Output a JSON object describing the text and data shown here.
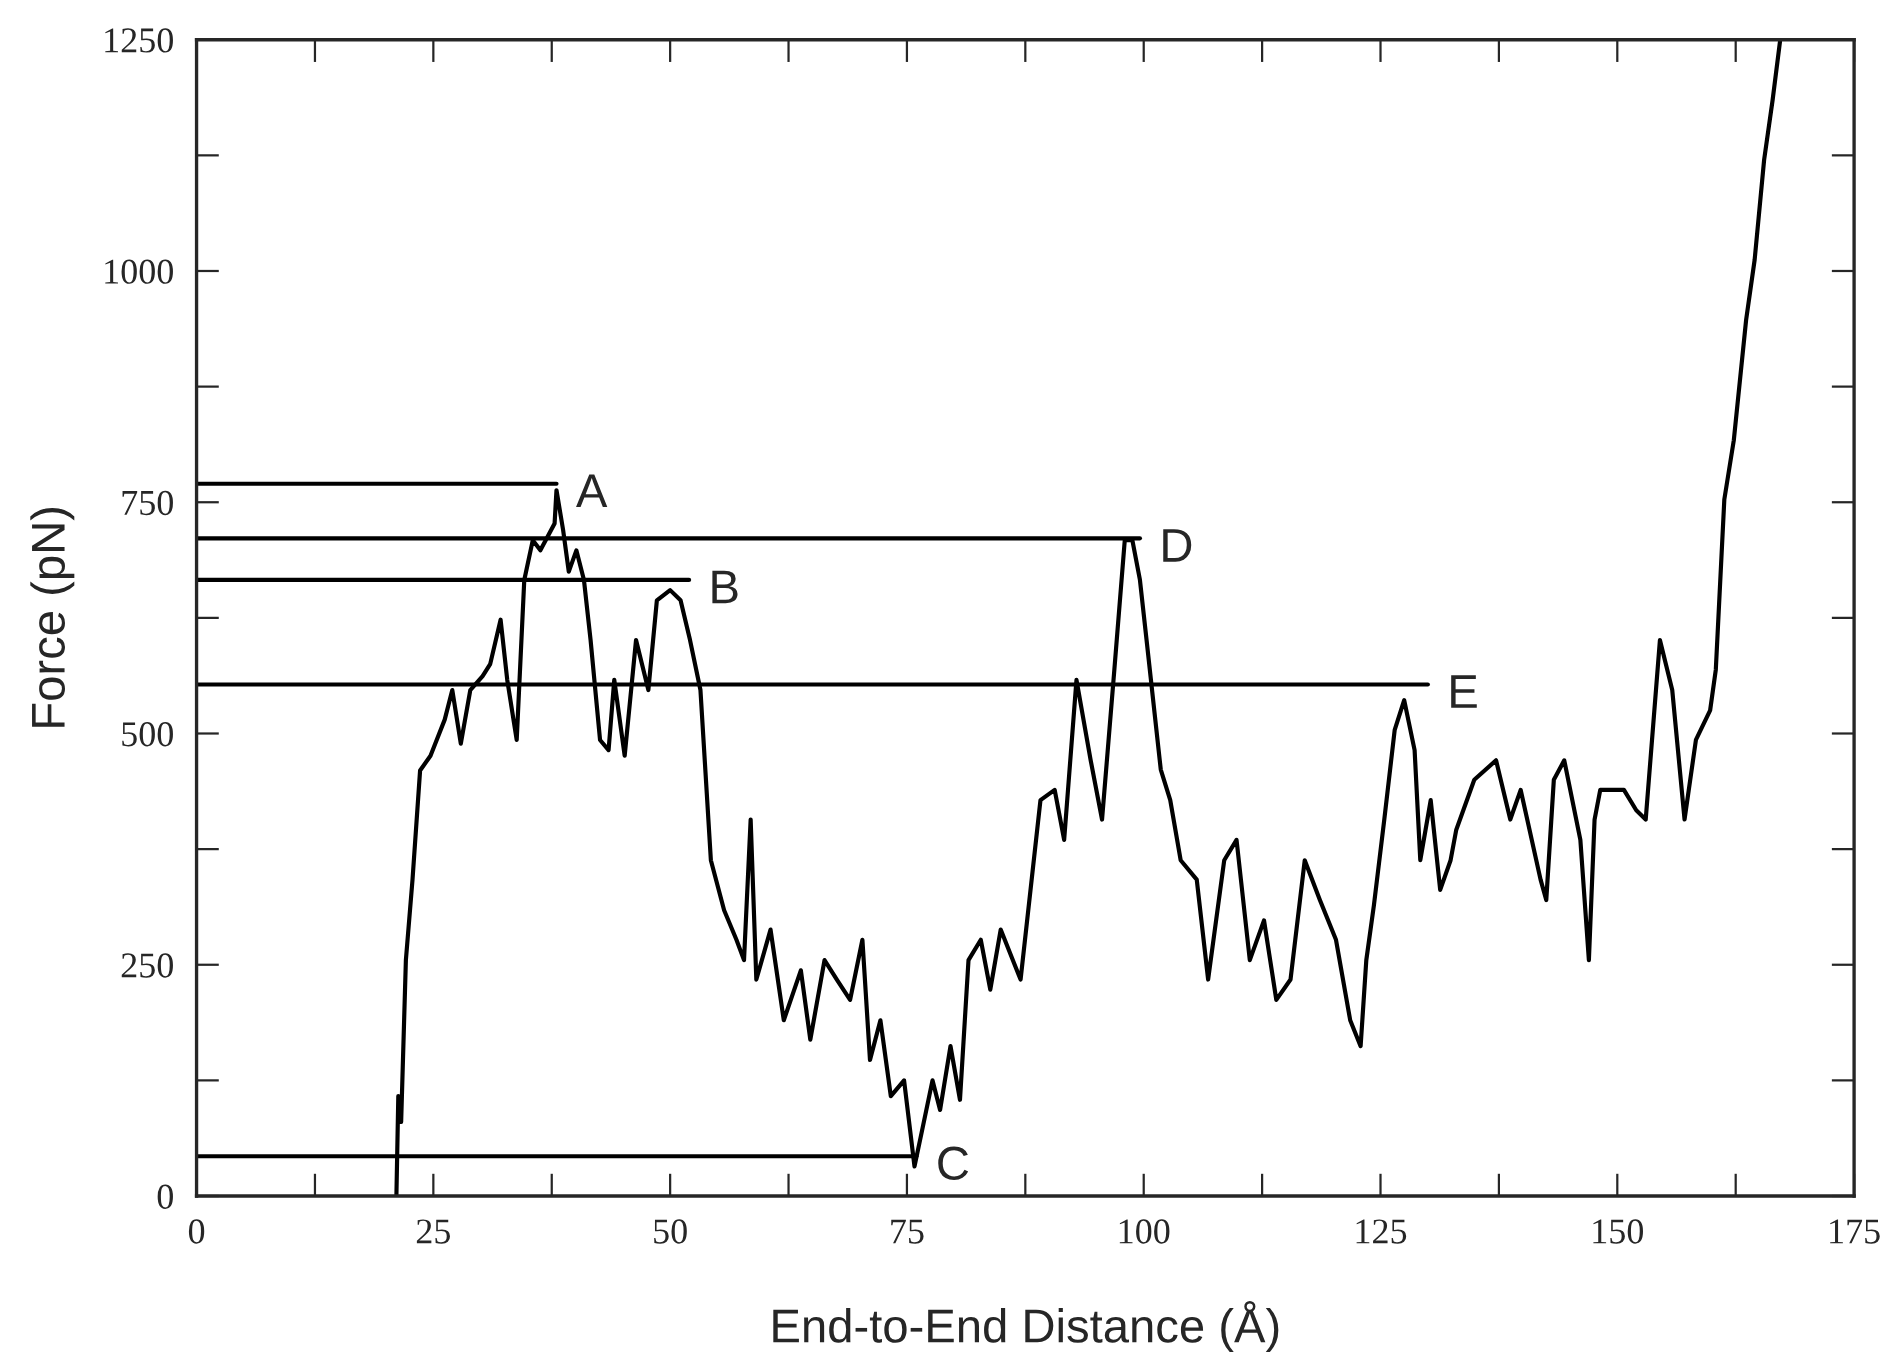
{
  "chart_data": {
    "type": "line",
    "xlabel": "End-to-End Distance (Å)",
    "ylabel": "Force (pN)",
    "xlim": [
      0,
      175
    ],
    "ylim": [
      0,
      1250
    ],
    "xticks": [
      0,
      {
        "value": 12.5,
        "label": null
      },
      25,
      {
        "value": 37.5,
        "label": null
      },
      50,
      {
        "value": 62.5,
        "label": null
      },
      75,
      {
        "value": 87.5,
        "label": null
      },
      100,
      {
        "value": 112.5,
        "label": null
      },
      125,
      {
        "value": 137.5,
        "label": null
      },
      150,
      {
        "value": 162.5,
        "label": null
      },
      175
    ],
    "yticks": [
      0,
      {
        "value": 125,
        "label": null
      },
      250,
      {
        "value": 375,
        "label": null
      },
      500,
      {
        "value": 625,
        "label": null
      },
      750,
      {
        "value": 875,
        "label": null
      },
      1000,
      {
        "value": 1125,
        "label": null
      },
      1250
    ],
    "grid": false,
    "legend": false,
    "marker": "none",
    "line_style": "solid",
    "series": [
      {
        "color": "#000000",
        "x": [
          21.1,
          21.3,
          21.6,
          22.1,
          22.8,
          23.6,
          24.7,
          26.2,
          27,
          27.9,
          28.9,
          30.2,
          31,
          32.1,
          32.8,
          33.8,
          34.6,
          35.5,
          36.3,
          37.8,
          38,
          38.7,
          39.3,
          40.1,
          40.9,
          41.6,
          42.6,
          43.5,
          44.1,
          45.2,
          46.4,
          47.7,
          48.6,
          50,
          51.1,
          52.1,
          53.2,
          54.3,
          55.7,
          57,
          57.8,
          58.5,
          59.1,
          60.6,
          62,
          63.8,
          64.8,
          66.3,
          67.6,
          69,
          70.3,
          71.1,
          72.2,
          73.3,
          74.7,
          75.8,
          76.6,
          77.7,
          78.5,
          79.6,
          80.6,
          81.5,
          82.8,
          83.8,
          84.9,
          87,
          89.1,
          90.6,
          91.6,
          92.9,
          94.4,
          95.6,
          96.9,
          98,
          98.8,
          99.6,
          100.3,
          101.8,
          102.8,
          103.9,
          105.6,
          106.8,
          108.5,
          109.8,
          111.2,
          112.7,
          114,
          115.5,
          117,
          118.6,
          120.3,
          121.8,
          122.9,
          123.5,
          124.3,
          125.4,
          126.5,
          127.5,
          128.6,
          129.2,
          130.3,
          131.3,
          132.4,
          133,
          134.9,
          137.2,
          138.7,
          139.8,
          141.9,
          142.5,
          143.3,
          144.4,
          146.1,
          147,
          147.6,
          148.2,
          150.7,
          152,
          153,
          154.5,
          155.8,
          157.1,
          158.3,
          159.8,
          160.4,
          161.3,
          162.3,
          163.6,
          164.5,
          165.5,
          166.4,
          167.2
        ],
        "values": [
          0,
          108,
          80,
          255,
          342,
          460,
          476,
          515,
          547,
          489,
          547,
          562,
          575,
          623,
          558,
          493,
          666,
          709,
          698,
          727,
          763,
          720,
          675,
          698,
          666,
          601,
          493,
          482,
          558,
          476,
          601,
          547,
          644,
          655,
          644,
          601,
          547,
          363,
          309,
          277,
          255,
          407,
          234,
          288,
          190,
          244,
          169,
          255,
          234,
          212,
          277,
          147,
          190,
          108,
          125,
          32,
          71,
          125,
          93,
          162,
          104,
          255,
          277,
          223,
          288,
          234,
          428,
          439,
          385,
          558,
          471,
          407,
          569,
          709,
          709,
          666,
          601,
          461,
          428,
          363,
          342,
          234,
          363,
          385,
          255,
          298,
          212,
          234,
          363,
          320,
          277,
          190,
          162,
          255,
          314,
          407,
          504,
          536,
          482,
          363,
          428,
          331,
          363,
          396,
          450,
          471,
          407,
          439,
          342,
          320,
          450,
          471,
          385,
          255,
          407,
          439,
          439,
          417,
          407,
          601,
          547,
          407,
          493,
          525,
          569,
          753,
          817,
          947,
          1012,
          1120,
          1185,
          1250
        ]
      },
      {
        "color": "#000000",
        "x": [
          0,
          38
        ],
        "values": [
          770,
          770
        ]
      },
      {
        "color": "#000000",
        "x": [
          0,
          52
        ],
        "values": [
          666,
          666
        ]
      },
      {
        "color": "#000000",
        "x": [
          0,
          76
        ],
        "values": [
          43,
          43
        ]
      },
      {
        "color": "#000000",
        "x": [
          0,
          99.6
        ],
        "values": [
          711,
          711
        ]
      },
      {
        "color": "#000000",
        "x": [
          0,
          130
        ],
        "values": [
          553,
          553
        ]
      }
    ],
    "annotations": [
      {
        "text": "A",
        "x": 38,
        "y": 770
      },
      {
        "text": "B",
        "x": 52,
        "y": 666
      },
      {
        "text": "C",
        "x": 76,
        "y": 43
      },
      {
        "text": "D",
        "x": 99.6,
        "y": 711
      },
      {
        "text": "E",
        "x": 130,
        "y": 553
      }
    ]
  }
}
